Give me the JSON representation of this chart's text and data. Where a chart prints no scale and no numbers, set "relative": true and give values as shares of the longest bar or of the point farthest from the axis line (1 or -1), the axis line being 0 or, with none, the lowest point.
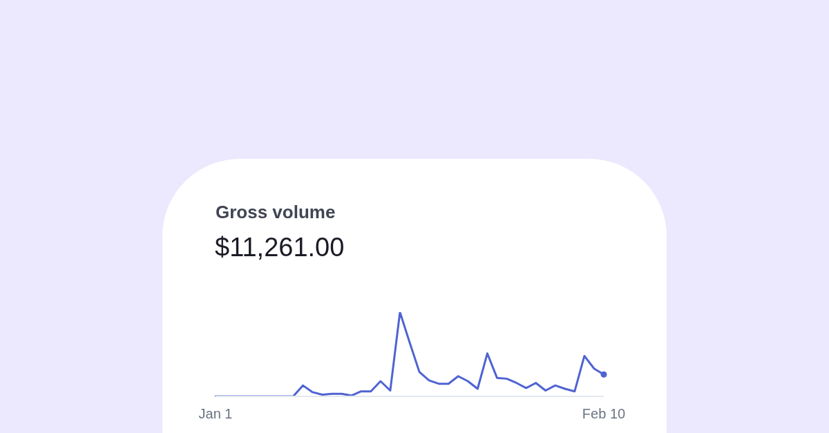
{
  "chart_data": {
    "type": "line",
    "title": "Gross volume",
    "subtitle": "$11,261.00",
    "relative": true,
    "categories": [
      "Jan 1",
      null,
      null,
      null,
      null,
      null,
      null,
      null,
      null,
      null,
      null,
      null,
      null,
      null,
      null,
      null,
      null,
      null,
      null,
      null,
      null,
      null,
      null,
      null,
      null,
      null,
      null,
      null,
      null,
      null,
      null,
      null,
      null,
      null,
      null,
      null,
      null,
      null,
      null,
      null,
      "Feb 10"
    ],
    "series": [
      {
        "color": "#4f63d2",
        "values": [
          0,
          0,
          0,
          0,
          0,
          0,
          0,
          0,
          0,
          0.13,
          0.05,
          0.02,
          0.03,
          0.03,
          0.01,
          0.06,
          0.06,
          0.18,
          0.07,
          1,
          0.64,
          0.29,
          0.19,
          0.15,
          0.15,
          0.24,
          0.18,
          0.09,
          0.51,
          0.22,
          0.21,
          0.16,
          0.1,
          0.16,
          0.07,
          0.13,
          0.09,
          0.06,
          0.48,
          0.33,
          0.26
        ]
      },
      {
        "type": "scatter",
        "color": "#4f63d2",
        "marker": "circle",
        "values": [
          null,
          null,
          null,
          null,
          null,
          null,
          null,
          null,
          null,
          null,
          null,
          null,
          null,
          null,
          null,
          null,
          null,
          null,
          null,
          null,
          null,
          null,
          null,
          null,
          null,
          null,
          null,
          null,
          null,
          null,
          null,
          null,
          null,
          null,
          null,
          null,
          null,
          null,
          null,
          null,
          0.26
        ]
      }
    ]
  }
}
